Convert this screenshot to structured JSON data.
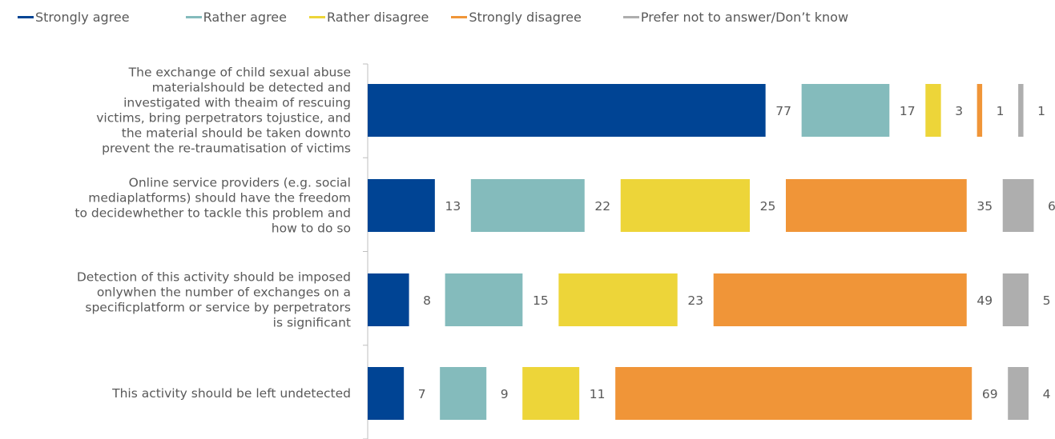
{
  "chart_data": {
    "type": "bar",
    "orientation": "horizontal",
    "layout": "clustered-across-row",
    "legend_position": "top",
    "grid": false,
    "categories": [
      [
        "The exchange of child sexual abuse",
        "materialshould be detected and",
        "investigated with theaim of rescuing",
        "victims, bring perpetrators tojustice, and",
        "the material should be taken downto",
        "prevent the re-traumatisation of victims"
      ],
      [
        "Online service providers (e.g. social",
        "mediaplatforms) should have the freedom",
        "to decidewhether to tackle this problem and",
        "how to do so"
      ],
      [
        "Detection of this activity should be imposed",
        "onlywhen the number of exchanges on a",
        "specificplatform or service by perpetrators",
        "is significant"
      ],
      [
        "This activity should be left undetected"
      ]
    ],
    "series": [
      {
        "name": "Strongly agree",
        "color": "#004494",
        "values": [
          77,
          13,
          8,
          7
        ]
      },
      {
        "name": "Rather agree",
        "color": "#84BBBC",
        "values": [
          17,
          22,
          15,
          9
        ]
      },
      {
        "name": "Rather disagree",
        "color": "#EDD539",
        "values": [
          3,
          25,
          23,
          11
        ]
      },
      {
        "name": "Strongly disagree",
        "color": "#F09538",
        "values": [
          1,
          35,
          49,
          69
        ]
      },
      {
        "name": "Prefer not to answer/Don’t know",
        "color": "#AEAEAE",
        "values": [
          1,
          6,
          5,
          4
        ]
      }
    ]
  }
}
